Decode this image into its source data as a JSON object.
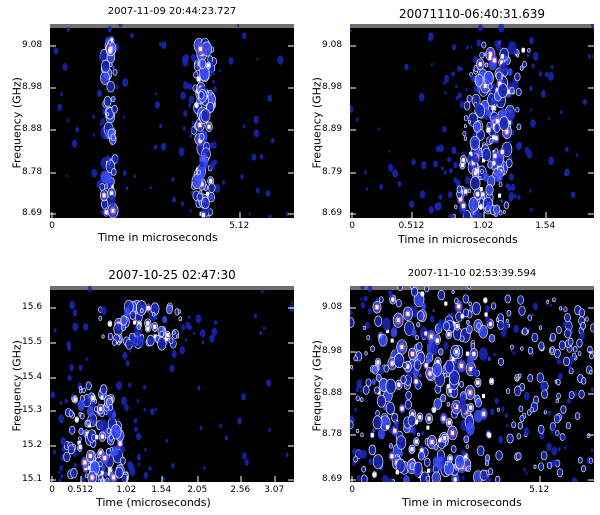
{
  "chart_data": [
    {
      "type": "heatmap",
      "title": "2007-11-09  20:44:23.727",
      "xlabel": "Time in microseconds",
      "ylabel": "Frequency (GHz)",
      "x_ticks": [
        "0",
        "5.12"
      ],
      "y_ticks": [
        "9.08",
        "8.98",
        "8.88",
        "8.78",
        "8.69"
      ],
      "xlim": [
        0,
        8.7
      ],
      "ylim": [
        8.69,
        9.12
      ],
      "colorscale": [
        "#000000",
        "#1f2fd0",
        "#5a6bff",
        "#ffffff",
        "#ff6060"
      ],
      "features": [
        {
          "label": "vertical band",
          "x_center": 2.0,
          "x_width": 0.45,
          "y_range": [
            8.69,
            9.08
          ]
        },
        {
          "label": "vertical band",
          "x_center": 5.0,
          "x_width": 0.6,
          "y_range": [
            8.69,
            9.08
          ]
        }
      ]
    },
    {
      "type": "heatmap",
      "title": "20071110-06:40:31.639",
      "xlabel": "Time in microseconds",
      "ylabel": "Frequency (GHz)",
      "x_ticks": [
        "0",
        "0.512",
        "1.02",
        "1.54"
      ],
      "y_ticks": [
        "9.08",
        "8.98",
        "8.89",
        "8.79",
        "8.69"
      ],
      "xlim": [
        0,
        1.7
      ],
      "ylim": [
        8.69,
        9.12
      ],
      "colorscale": [
        "#000000",
        "#1f2fd0",
        "#5a6bff",
        "#ffffff",
        "#ff6060"
      ],
      "features": [
        {
          "label": "drifting burst",
          "x_start": 0.75,
          "x_end": 1.3,
          "y_range": [
            8.69,
            9.08
          ]
        }
      ]
    },
    {
      "type": "heatmap",
      "title": "2007-10-25 02:47:30",
      "xlabel": "Time (microseconds)",
      "ylabel": "Frequency (GHz)",
      "x_ticks": [
        "0",
        "0.512",
        "1.02",
        "1.54",
        "2.05",
        "2.56",
        "3.07"
      ],
      "y_ticks": [
        "15.6",
        "15.5",
        "15.4",
        "15.3",
        "15.2",
        "15.1"
      ],
      "xlim": [
        0,
        3.3
      ],
      "ylim": [
        15.1,
        15.65
      ],
      "colorscale": [
        "#000000",
        "#1f2fd0",
        "#5a6bff",
        "#ffffff",
        "#ff6060"
      ],
      "features": [
        {
          "label": "upper band",
          "x_range": [
            0.4,
            1.9
          ],
          "y_range": [
            15.47,
            15.6
          ]
        },
        {
          "label": "lower band",
          "x_range": [
            0.3,
            1.4
          ],
          "y_range": [
            15.1,
            15.35
          ]
        }
      ]
    },
    {
      "type": "heatmap",
      "title": "2007-11-10  02:53:39.594",
      "xlabel": "Time in microseconds",
      "ylabel": "Frequency (GHz)",
      "x_ticks": [
        "0",
        "5.12"
      ],
      "y_ticks": [
        "9.08",
        "8.98",
        "8.88",
        "8.78",
        "8.69"
      ],
      "xlim": [
        0,
        8.7
      ],
      "ylim": [
        8.69,
        9.1
      ],
      "colorscale": [
        "#000000",
        "#1f2fd0",
        "#5a6bff",
        "#ffffff",
        "#ff6060"
      ],
      "features": [
        {
          "label": "broadband scatter",
          "x_range": [
            0,
            8.7
          ],
          "y_range": [
            8.69,
            9.08
          ]
        }
      ]
    }
  ]
}
